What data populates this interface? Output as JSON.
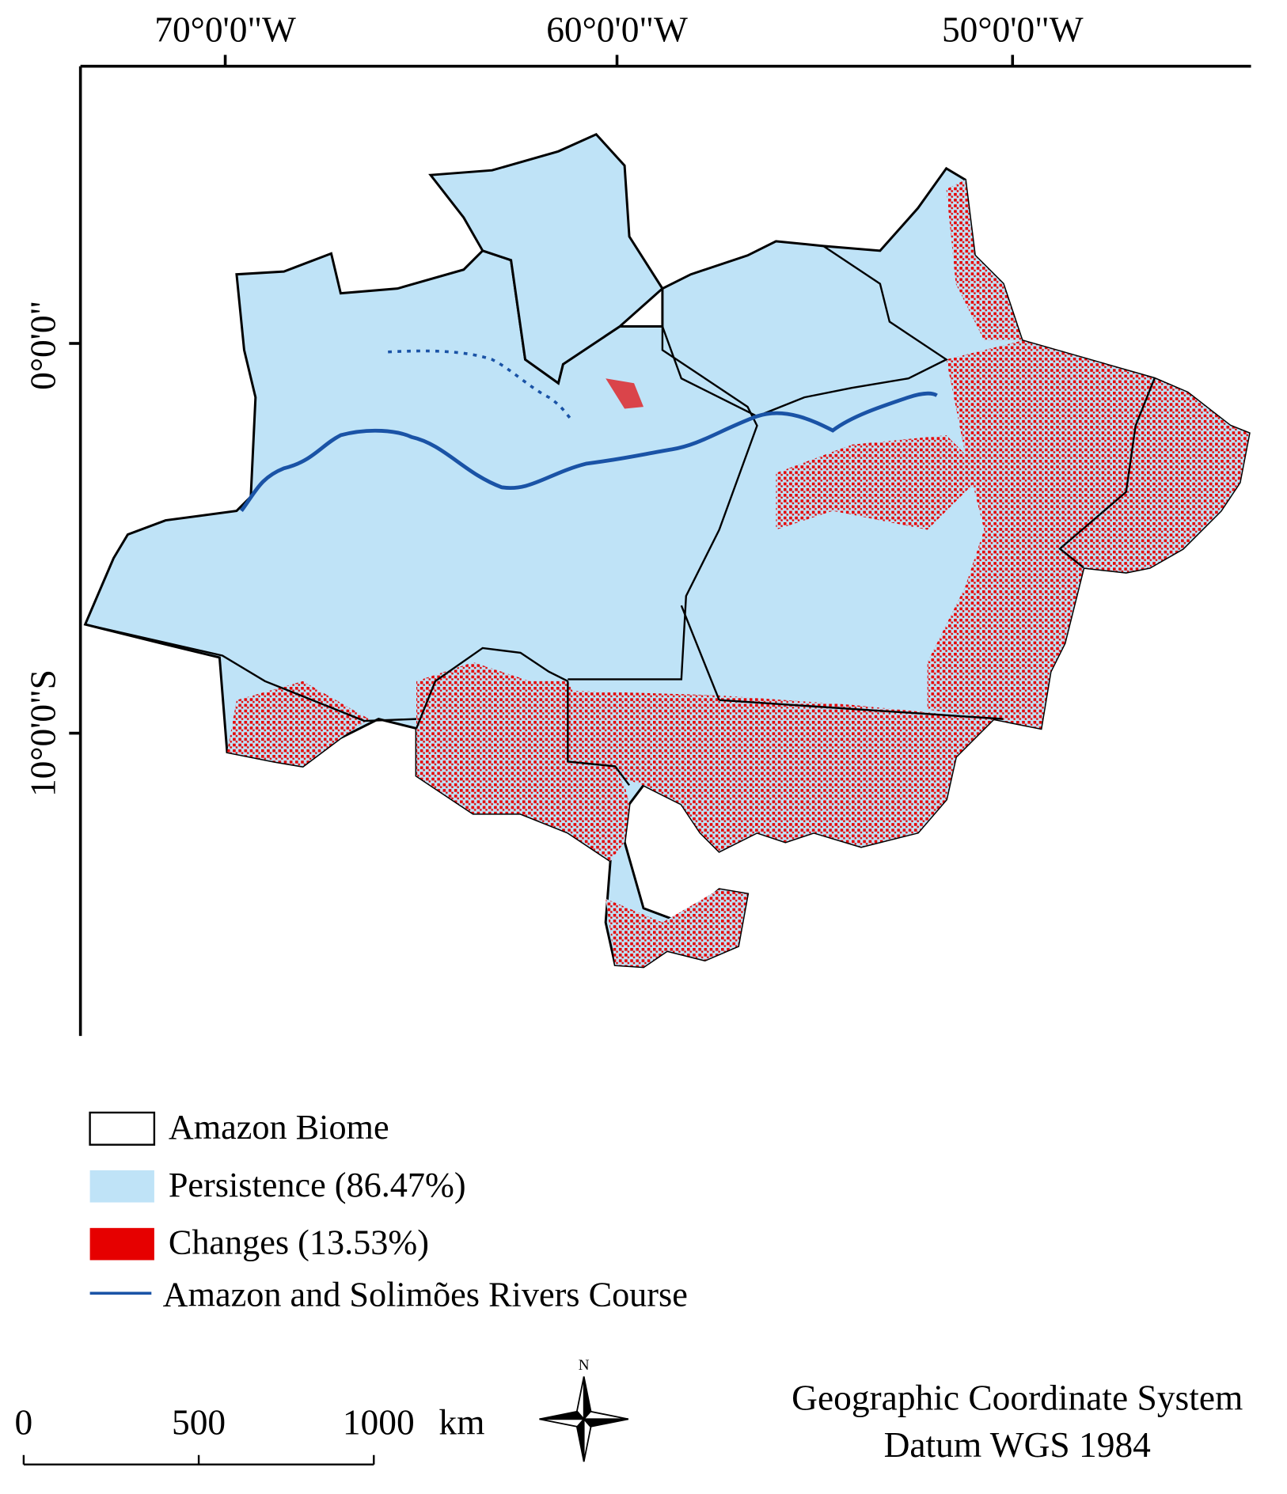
{
  "axes": {
    "x_labels": [
      "70°0'0\"W",
      "60°0'0\"W",
      "50°0'0\"W"
    ],
    "y_labels": [
      "0°0'0\"",
      "10°0'0\"S"
    ]
  },
  "legend": {
    "items": [
      "Amazon Biome",
      "Persistence (86.47%)",
      "Changes (13.53%)",
      "Amazon and Solimões Rivers Course"
    ]
  },
  "scale_bar": {
    "labels": [
      "0",
      "500",
      "1000"
    ],
    "unit": "km"
  },
  "north_arrow": "N",
  "coordinate_note": {
    "line1": "Geographic Coordinate System",
    "line2": "Datum WGS 1984"
  }
}
